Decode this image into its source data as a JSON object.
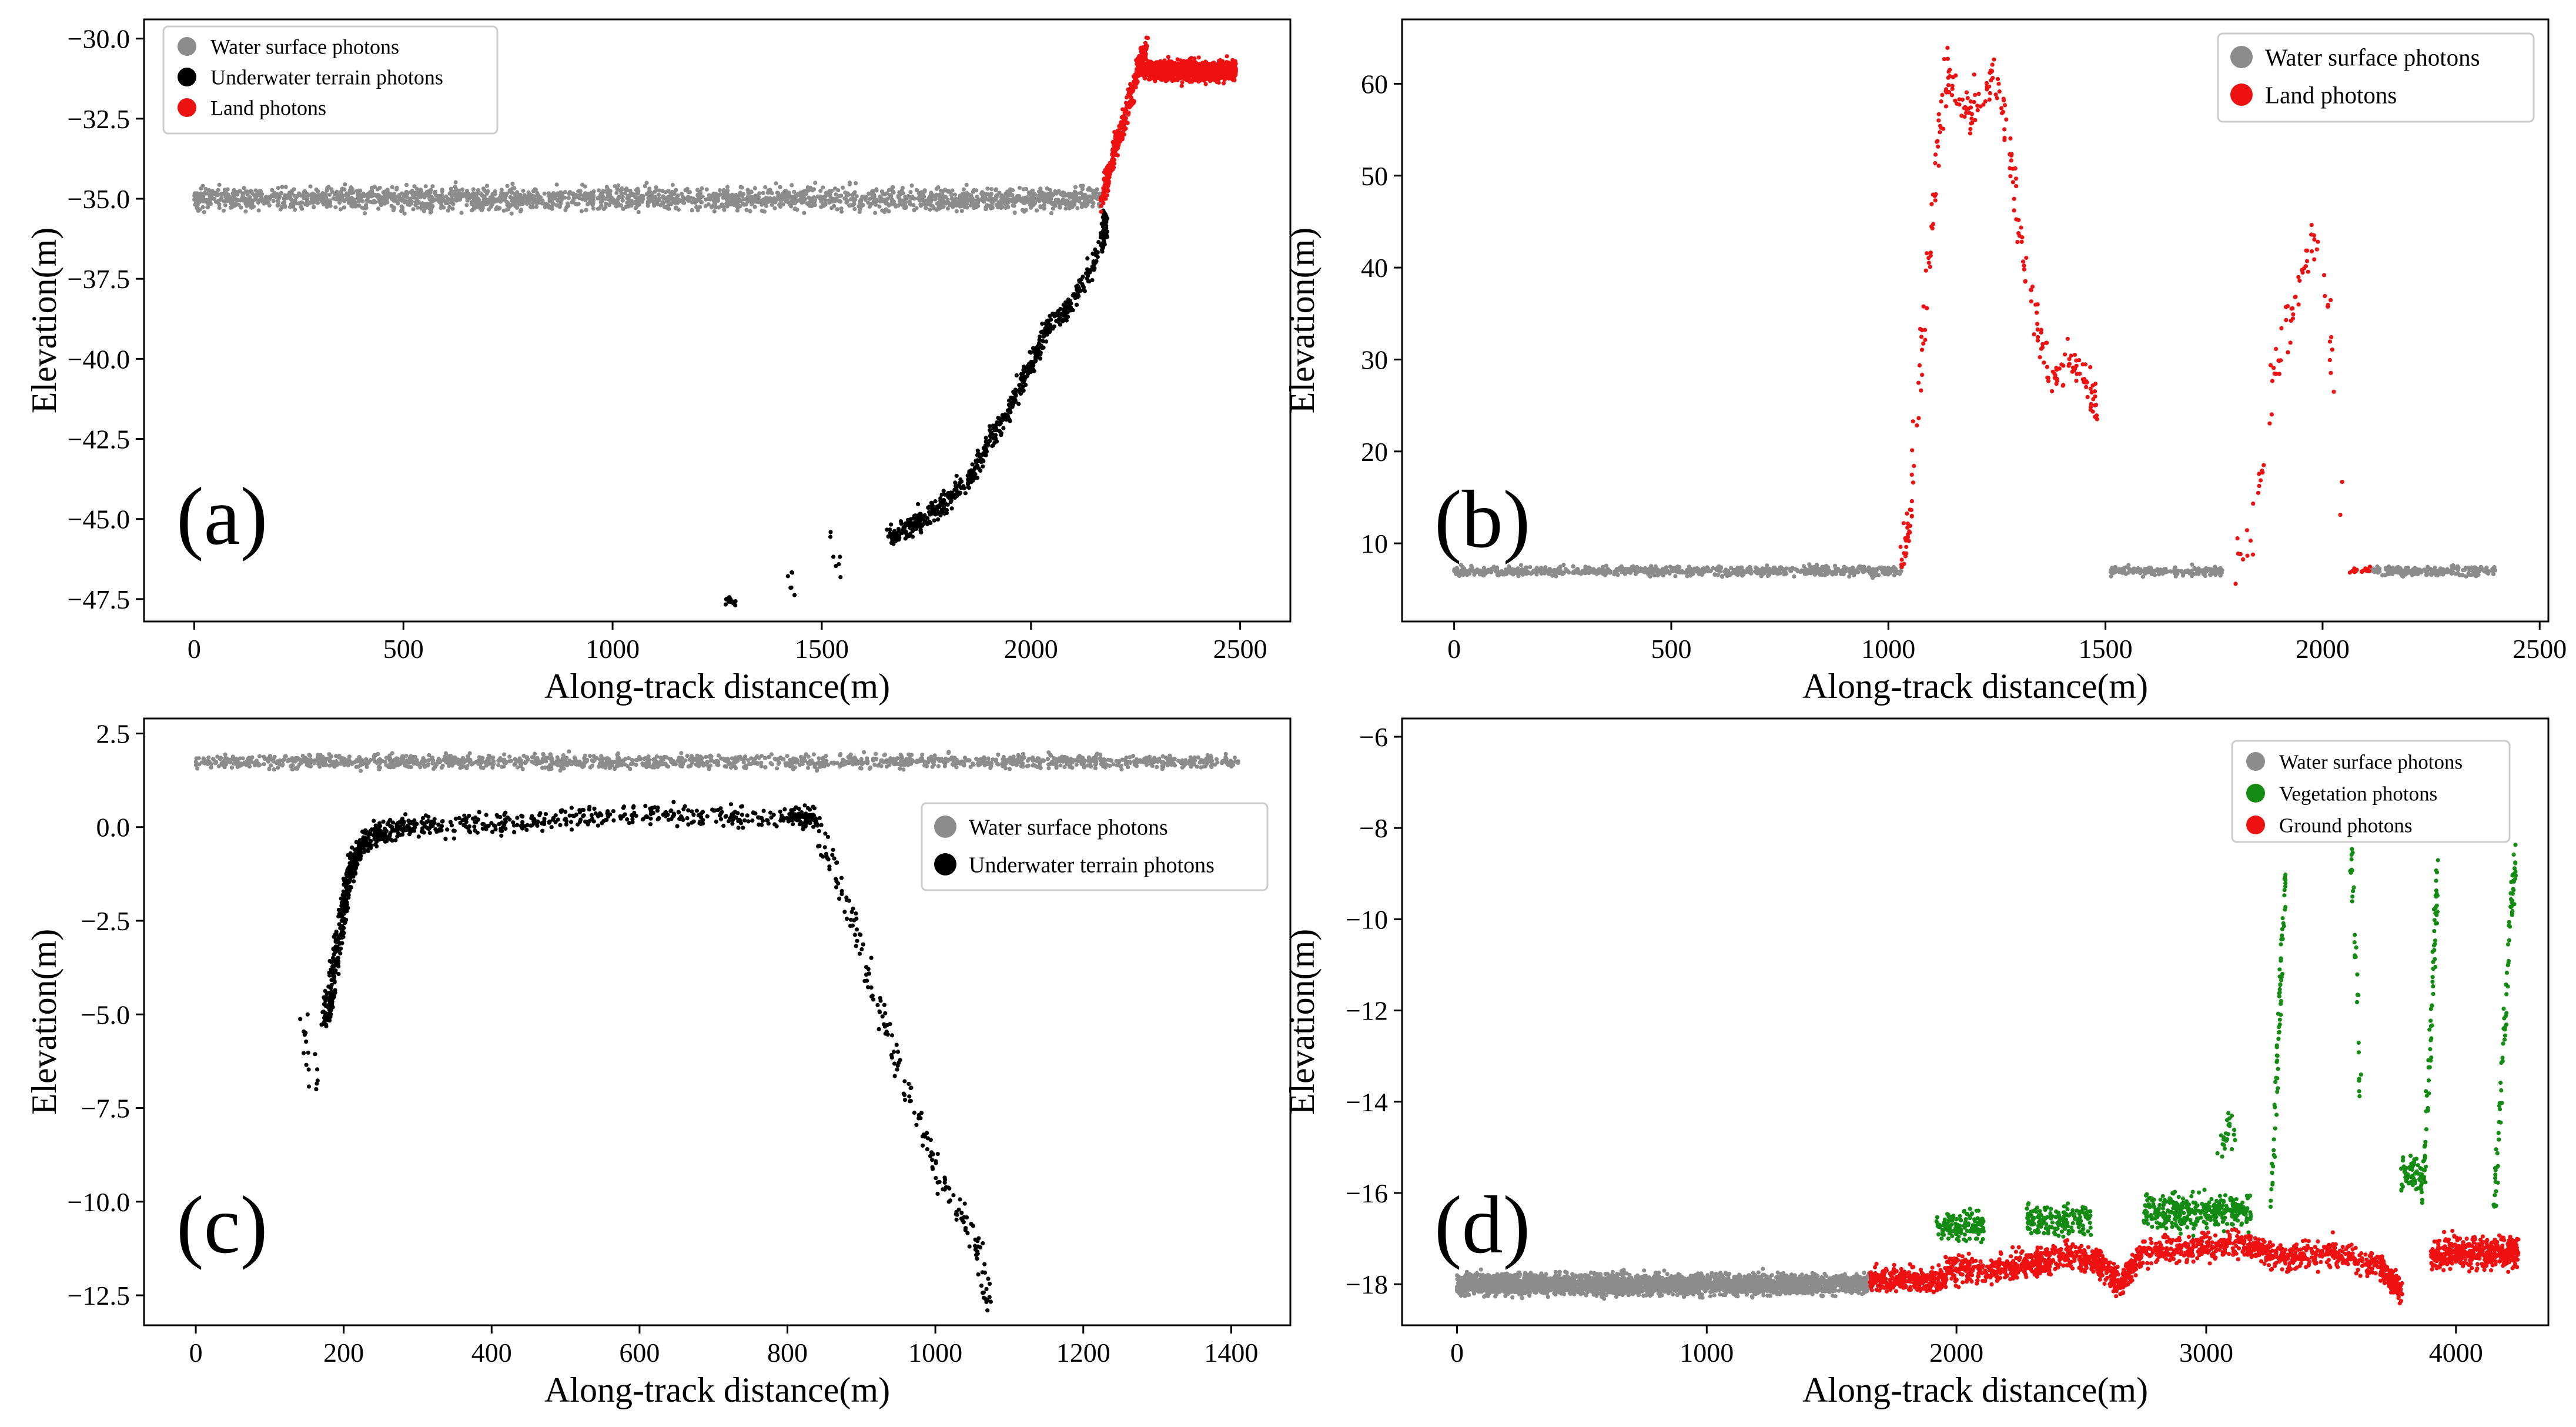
{
  "colors": {
    "water": "#8c8c8c",
    "underwater": "#000000",
    "land": "#ee1111",
    "vegetation": "#148c14",
    "ground": "#ee1111"
  },
  "chart_data": [
    {
      "type": "scatter",
      "panel_label": "(a)",
      "xlabel": "Along-track distance(m)",
      "ylabel": "Elevation(m)",
      "xlim": [
        -120,
        2620
      ],
      "ylim": [
        -48.2,
        -29.4
      ],
      "xticks": [
        0,
        500,
        1000,
        1500,
        2000,
        2500
      ],
      "xtick_labels": [
        "0",
        "500",
        "1000",
        "1500",
        "2000",
        "2500"
      ],
      "yticks": [
        -30.0,
        -32.5,
        -35.0,
        -37.5,
        -40.0,
        -42.5,
        -45.0,
        -47.5
      ],
      "ytick_labels": [
        "−30.0",
        "−32.5",
        "−35.0",
        "−37.5",
        "−40.0",
        "−42.5",
        "−45.0",
        "−47.5"
      ],
      "legend": {
        "position": "top-left",
        "entries": [
          "Water surface photons",
          "Underwater terrain photons",
          "Land photons"
        ]
      },
      "series": [
        {
          "name": "Water surface photons",
          "color_key": "water",
          "samples": [
            {
              "x0": 0,
              "x1": 2170,
              "y": -35.0,
              "spread": 0.35,
              "n": 2200
            }
          ]
        },
        {
          "name": "Underwater terrain photons",
          "color_key": "underwater",
          "samples": [
            {
              "x": [
                2180,
                2170,
                2100,
                2040,
                2000,
                1950,
                1900,
                1860,
                1800,
                1740,
                1700,
                1660
              ],
              "y": [
                -35.6,
                -36.5,
                -38.2,
                -39.0,
                -40.2,
                -41.5,
                -42.6,
                -43.6,
                -44.4,
                -45.0,
                -45.3,
                -45.7
              ],
              "spread": 0.35,
              "n": 650
            },
            {
              "x": [
                1270,
                1290
              ],
              "y": [
                -47.5,
                -47.7
              ],
              "spread": 0.2,
              "n": 14
            },
            {
              "x": [
                1420,
                1440
              ],
              "y": [
                -46.6,
                -47.3
              ],
              "spread": 0.3,
              "n": 6
            },
            {
              "x": [
                1520,
                1550
              ],
              "y": [
                -45.6,
                -47.0
              ],
              "spread": 0.35,
              "n": 7
            }
          ]
        },
        {
          "name": "Land photons",
          "color_key": "land",
          "samples": [
            {
              "x": [
                2170,
                2185,
                2205,
                2230,
                2255,
                2275
              ],
              "y": [
                -35.0,
                -34.2,
                -33.2,
                -32.3,
                -31.0,
                -30.2
              ],
              "spread": 0.35,
              "n": 340
            },
            {
              "x0": 2270,
              "x1": 2490,
              "y": -31.0,
              "spread": 0.3,
              "n": 1100
            }
          ]
        }
      ]
    },
    {
      "type": "scatter",
      "panel_label": "(b)",
      "xlabel": "Along-track distance(m)",
      "ylabel": "Elevation(m)",
      "xlim": [
        -120,
        2520
      ],
      "ylim": [
        1.5,
        67
      ],
      "xticks": [
        0,
        500,
        1000,
        1500,
        2000,
        2500
      ],
      "xtick_labels": [
        "0",
        "500",
        "1000",
        "1500",
        "2000",
        "2500"
      ],
      "yticks": [
        10,
        20,
        30,
        40,
        50,
        60
      ],
      "ytick_labels": [
        "10",
        "20",
        "30",
        "40",
        "50",
        "60"
      ],
      "legend": {
        "position": "top-right",
        "entries": [
          "Water surface photons",
          "Land photons"
        ]
      },
      "series": [
        {
          "name": "Water surface photons",
          "color_key": "water",
          "samples": [
            {
              "x0": 0,
              "x1": 1030,
              "y": 7.0,
              "spread": 0.5,
              "n": 750
            },
            {
              "x0": 1510,
              "x1": 1770,
              "y": 7.0,
              "spread": 0.5,
              "n": 180
            },
            {
              "x0": 2110,
              "x1": 2400,
              "y": 7.0,
              "spread": 0.5,
              "n": 220
            }
          ]
        },
        {
          "name": "Land photons",
          "color_key": "land",
          "samples": [
            {
              "x": [
                1030,
                1045,
                1060,
                1075,
                1090,
                1105,
                1120,
                1140,
                1160,
                1180,
                1200,
                1220,
                1240,
                1260,
                1280,
                1300,
                1320,
                1340,
                1360,
                1380,
                1400,
                1420,
                1440,
                1460,
                1480
              ],
              "y": [
                7.5,
                12,
                20,
                30,
                38,
                47,
                56,
                62,
                58,
                57,
                58,
                59,
                60,
                58,
                52,
                45,
                38,
                34,
                30,
                28,
                29,
                30,
                29,
                27,
                25
              ],
              "spread": 2.2,
              "n": 270
            },
            {
              "x": [
                1800,
                1830,
                1850,
                1870,
                1890,
                1910,
                1930,
                1950,
                1970,
                1990,
                2010,
                2030,
                2050
              ],
              "y": [
                7,
                11,
                15,
                22,
                29,
                32,
                35,
                40,
                42,
                42,
                37,
                25,
                10
              ],
              "spread": 2.5,
              "n": 75
            },
            {
              "x0": 2060,
              "x1": 2110,
              "y": 7.0,
              "spread": 0.4,
              "n": 16
            }
          ]
        }
      ]
    },
    {
      "type": "scatter",
      "panel_label": "(c)",
      "xlabel": "Along-track distance(m)",
      "ylabel": "Elevation(m)",
      "xlim": [
        -70,
        1480
      ],
      "ylim": [
        -13.3,
        2.9
      ],
      "xticks": [
        0,
        200,
        400,
        600,
        800,
        1000,
        1200,
        1400
      ],
      "xtick_labels": [
        "0",
        "200",
        "400",
        "600",
        "800",
        "1000",
        "1200",
        "1400"
      ],
      "yticks": [
        2.5,
        0.0,
        -2.5,
        -5.0,
        -7.5,
        -10.0,
        -12.5
      ],
      "ytick_labels": [
        "2.5",
        "0.0",
        "−2.5",
        "−5.0",
        "−7.5",
        "−10.0",
        "−12.5"
      ],
      "legend": {
        "position": "center-right",
        "entries": [
          "Water surface photons",
          "Underwater terrain photons"
        ]
      },
      "series": [
        {
          "name": "Water surface photons",
          "color_key": "water",
          "samples": [
            {
              "x0": 0,
              "x1": 1410,
              "y": 1.75,
              "spread": 0.18,
              "n": 1500
            }
          ]
        },
        {
          "name": "Underwater terrain photons",
          "color_key": "underwater",
          "samples": [
            {
              "x": [
                145,
                155,
                165
              ],
              "y": [
                -5.2,
                -6.3,
                -7.0
              ],
              "spread": 0.45,
              "n": 16
            },
            {
              "x": [
                175,
                185,
                195,
                205,
                215,
                230,
                260,
                300,
                400,
                500,
                600,
                700,
                800,
                840
              ],
              "y": [
                -5.2,
                -4.0,
                -2.8,
                -1.5,
                -0.8,
                -0.3,
                -0.1,
                0.0,
                0.1,
                0.2,
                0.35,
                0.3,
                0.3,
                0.25
              ],
              "spread": 0.28,
              "n": 900
            },
            {
              "x": [
                840,
                860,
                880,
                900,
                920,
                940,
                960,
                980,
                1000,
                1020,
                1040,
                1060,
                1070
              ],
              "y": [
                0.0,
                -1.0,
                -2.0,
                -3.2,
                -4.6,
                -5.8,
                -7.0,
                -8.0,
                -9.0,
                -10.0,
                -10.6,
                -11.3,
                -12.7
              ],
              "spread": 0.4,
              "n": 190
            }
          ]
        }
      ]
    },
    {
      "type": "scatter",
      "panel_label": "(d)",
      "xlabel": "Along-track distance(m)",
      "ylabel": "Elevation(m)",
      "xlim": [
        -220,
        4370
      ],
      "ylim": [
        -18.9,
        -5.6
      ],
      "xticks": [
        0,
        1000,
        2000,
        3000,
        4000
      ],
      "xtick_labels": [
        "0",
        "1000",
        "2000",
        "3000",
        "4000"
      ],
      "yticks": [
        -6,
        -8,
        -10,
        -12,
        -14,
        -16,
        -18
      ],
      "ytick_labels": [
        "−6",
        "−8",
        "−10",
        "−12",
        "−14",
        "−16",
        "−18"
      ],
      "legend": {
        "position": "top-right",
        "entries": [
          "Water surface photons",
          "Vegetation photons",
          "Ground photons"
        ]
      },
      "series": [
        {
          "name": "Water surface photons",
          "color_key": "water",
          "samples": [
            {
              "x0": 0,
              "x1": 1650,
              "y": -18.0,
              "spread": 0.22,
              "n": 3200
            }
          ]
        },
        {
          "name": "Vegetation photons",
          "color_key": "vegetation",
          "samples": [
            {
              "x0": 1920,
              "x1": 2110,
              "y": -16.7,
              "spread": 0.35,
              "n": 130
            },
            {
              "x0": 2280,
              "x1": 2540,
              "y": -16.6,
              "spread": 0.35,
              "n": 170
            },
            {
              "x0": 2750,
              "x1": 3180,
              "y": -16.4,
              "spread": 0.4,
              "n": 330
            },
            {
              "x": [
                3050,
                3120
              ],
              "y": [
                -15.0,
                -14.5
              ],
              "spread": 0.4,
              "n": 24
            },
            {
              "x": [
                3260,
                3275,
                3290,
                3305,
                3320
              ],
              "y": [
                -16.5,
                -14.5,
                -12.5,
                -10.5,
                -9.0
              ],
              "spread": 0.35,
              "n": 70
            },
            {
              "x": [
                3580,
                3600,
                3620
              ],
              "y": [
                -8.5,
                -11.0,
                -14.0
              ],
              "spread": 0.4,
              "n": 30
            },
            {
              "x0": 3780,
              "x1": 3880,
              "y": -15.6,
              "spread": 0.3,
              "n": 70
            },
            {
              "x": [
                3860,
                3880,
                3900,
                3915,
                3930
              ],
              "y": [
                -16.0,
                -14.5,
                -12.5,
                -10.5,
                -8.5
              ],
              "spread": 0.35,
              "n": 70
            },
            {
              "x": [
                4150,
                4180,
                4200,
                4220,
                4240
              ],
              "y": [
                -16.5,
                -14.0,
                -12.0,
                -10.0,
                -8.5
              ],
              "spread": 0.4,
              "n": 80
            }
          ]
        },
        {
          "name": "Ground photons",
          "color_key": "ground",
          "samples": [
            {
              "x0": 1650,
              "x1": 1960,
              "y": -17.9,
              "spread": 0.25,
              "n": 320
            },
            {
              "x": [
                1960,
                2100,
                2250,
                2400,
                2550,
                2650,
                2750,
                2950,
                3150,
                3300,
                3500,
                3700,
                3780
              ],
              "y": [
                -17.7,
                -17.7,
                -17.6,
                -17.4,
                -17.4,
                -18.0,
                -17.3,
                -17.2,
                -17.1,
                -17.4,
                -17.3,
                -17.6,
                -18.2
              ],
              "spread": 0.3,
              "n": 1500
            },
            {
              "x0": 3900,
              "x1": 4250,
              "y": -17.3,
              "spread": 0.35,
              "n": 420
            }
          ]
        }
      ]
    }
  ]
}
